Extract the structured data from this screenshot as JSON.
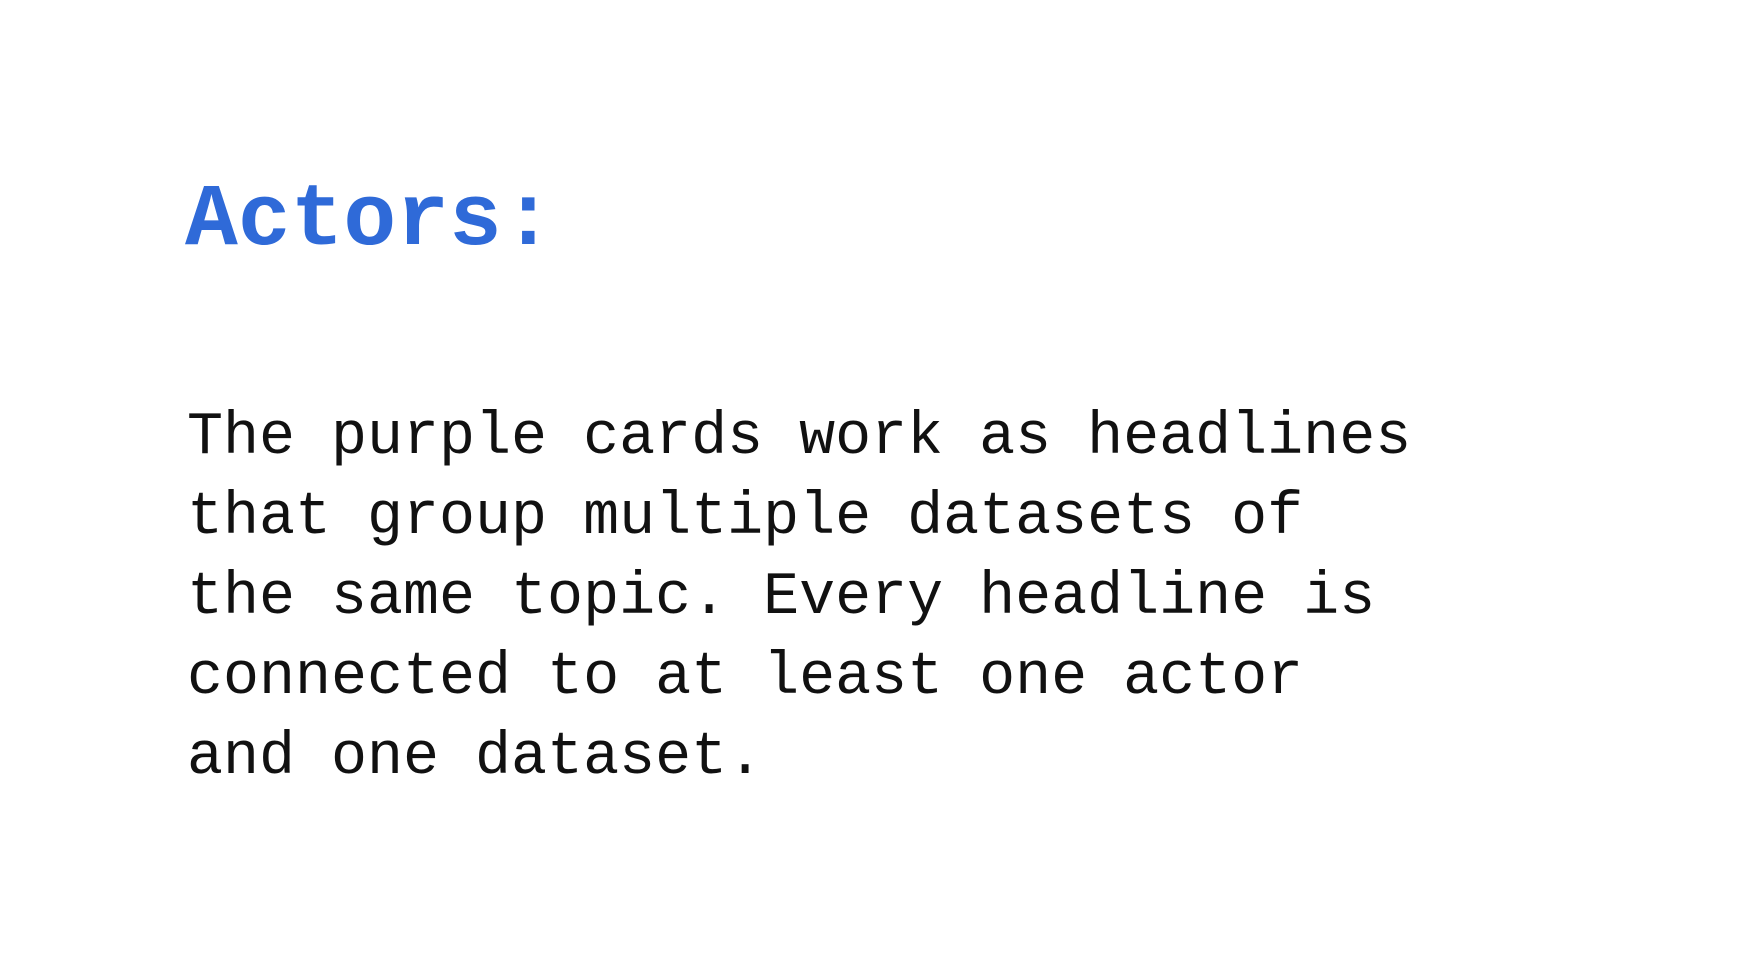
{
  "slide": {
    "title": "Actors:",
    "body_lines": [
      "The purple cards work as headlines",
      "that group multiple datasets of",
      "the same topic. Every headline is",
      "connected to at least one actor",
      "and one dataset."
    ]
  },
  "colors": {
    "title": "#2f6ad8",
    "body_text": "#111111",
    "background": "#ffffff"
  }
}
